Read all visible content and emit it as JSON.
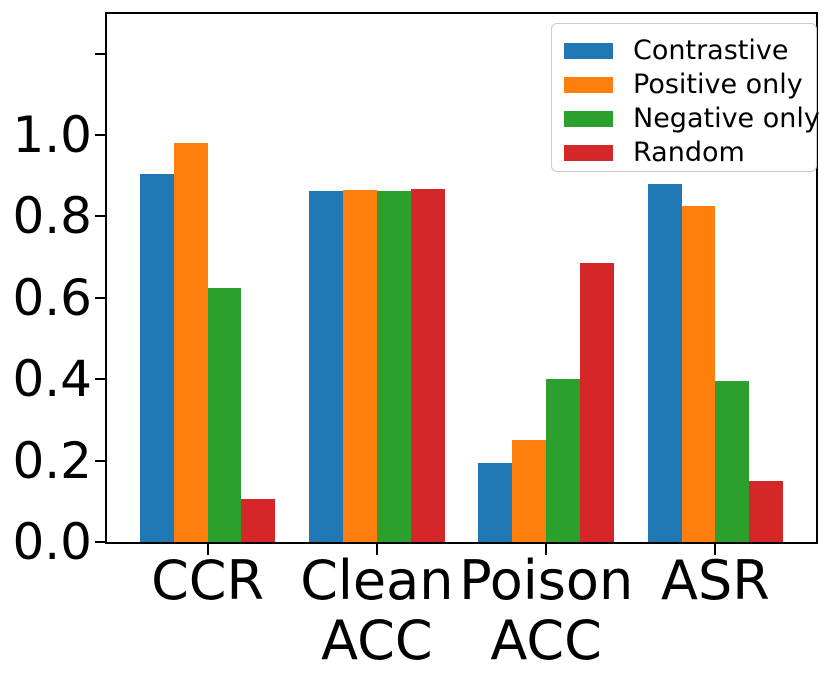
{
  "chart_data": {
    "type": "bar",
    "title": "",
    "xlabel": "",
    "ylabel": "",
    "categories": [
      "CCR",
      "Clean\nACC",
      "Poison\nACC",
      "ASR"
    ],
    "series": [
      {
        "name": "Contrastive",
        "color": "#1f77b4",
        "values": [
          0.905,
          0.862,
          0.195,
          0.88
        ]
      },
      {
        "name": "Positive only",
        "color": "#ff7f0e",
        "values": [
          0.98,
          0.866,
          0.25,
          0.825
        ]
      },
      {
        "name": "Negative only",
        "color": "#2ca02c",
        "values": [
          0.625,
          0.862,
          0.4,
          0.395
        ]
      },
      {
        "name": "Random",
        "color": "#d62728",
        "values": [
          0.105,
          0.868,
          0.685,
          0.15
        ]
      }
    ],
    "yticks": [
      {
        "value": 0.0,
        "label": "0.0"
      },
      {
        "value": 0.2,
        "label": "0.2"
      },
      {
        "value": 0.4,
        "label": "0.4"
      },
      {
        "value": 0.6,
        "label": "0.6"
      },
      {
        "value": 0.8,
        "label": "0.8"
      },
      {
        "value": 1.0,
        "label": "1.0"
      },
      {
        "value": 1.2,
        "label": ""
      }
    ],
    "ylim": [
      0,
      1.3
    ],
    "xlim": [
      -0.6,
      3.6
    ],
    "bar_width_units": 0.2,
    "grid": "off",
    "legend": {
      "position": "upper right"
    },
    "colors": {
      "axis": "#000000",
      "legend_border": "#cccccc",
      "background": "#ffffff"
    }
  }
}
